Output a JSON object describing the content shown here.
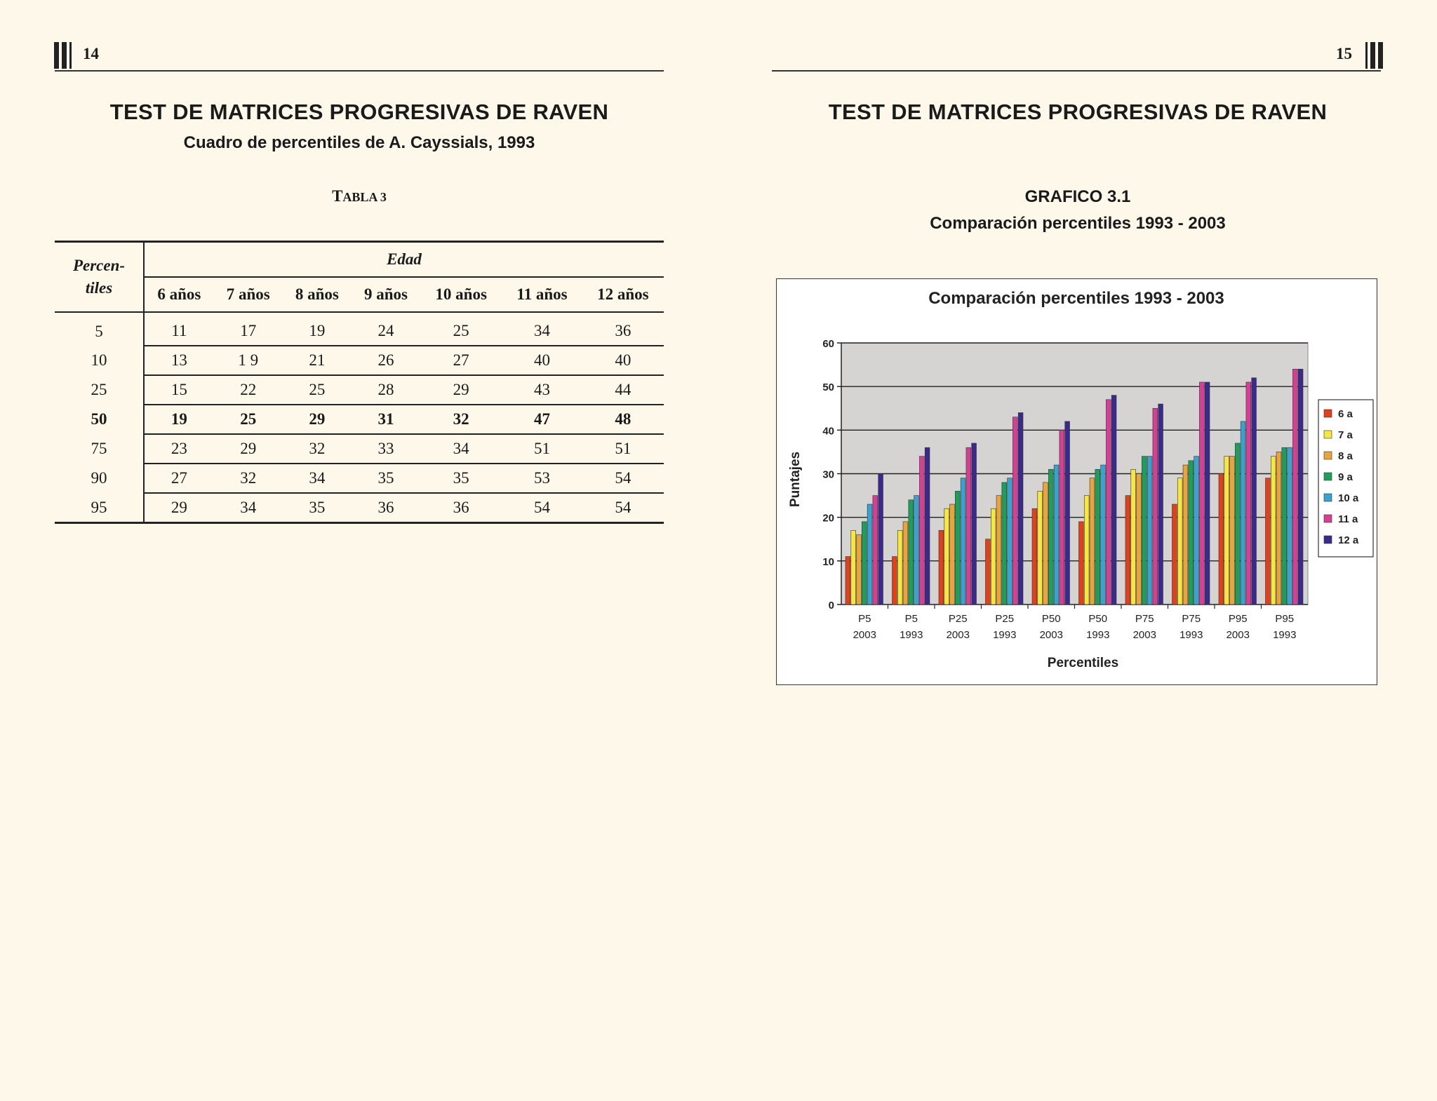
{
  "left_page": {
    "page_number": "14",
    "title": "TEST DE MATRICES PROGRESIVAS DE RAVEN",
    "subtitle": "Cuadro de percentiles de A. Cayssials, 1993",
    "table_caption_first": "T",
    "table_caption_rest": "ABLA 3",
    "table": {
      "row_header_line1": "Percen-",
      "row_header_line2": "tiles",
      "group_header": "Edad",
      "columns": [
        "6 años",
        "7 años",
        "8 años",
        "9 años",
        "10 años",
        "11 años",
        "12 años"
      ],
      "rows": [
        {
          "p": "5",
          "v": [
            "11",
            "17",
            "19",
            "24",
            "25",
            "34",
            "36"
          ]
        },
        {
          "p": "10",
          "v": [
            "13",
            "1 9",
            "21",
            "26",
            "27",
            "40",
            "40"
          ]
        },
        {
          "p": "25",
          "v": [
            "15",
            "22",
            "25",
            "28",
            "29",
            "43",
            "44"
          ]
        },
        {
          "p": "50",
          "v": [
            "19",
            "25",
            "29",
            "31",
            "32",
            "47",
            "48"
          ]
        },
        {
          "p": "75",
          "v": [
            "23",
            "29",
            "32",
            "33",
            "34",
            "51",
            "51"
          ]
        },
        {
          "p": "90",
          "v": [
            "27",
            "32",
            "34",
            "35",
            "35",
            "53",
            "54"
          ]
        },
        {
          "p": "95",
          "v": [
            "29",
            "34",
            "35",
            "36",
            "36",
            "54",
            "54"
          ]
        }
      ]
    }
  },
  "right_page": {
    "page_number": "15",
    "title": "TEST DE MATRICES PROGRESIVAS DE RAVEN",
    "figure_label": "GRAFICO 3.1",
    "figure_caption": "Comparación percentiles 1993 - 2003"
  },
  "chart_data": {
    "type": "bar",
    "title": "Comparación percentiles 1993 - 2003",
    "xlabel": "Percentiles",
    "ylabel": "Puntajes",
    "ylim": [
      0,
      60
    ],
    "yticks": [
      "0",
      "10",
      "20",
      "30",
      "40",
      "50",
      "60"
    ],
    "categories": [
      [
        "P5",
        "2003"
      ],
      [
        "P5",
        "1993"
      ],
      [
        "P25",
        "2003"
      ],
      [
        "P25",
        "1993"
      ],
      [
        "P50",
        "2003"
      ],
      [
        "P50",
        "1993"
      ],
      [
        "P75",
        "2003"
      ],
      [
        "P75",
        "1993"
      ],
      [
        "P95",
        "2003"
      ],
      [
        "P95",
        "1993"
      ]
    ],
    "legend_position": "right",
    "grid": true,
    "series": [
      {
        "name": "6 a",
        "color": "#e0401c",
        "values": [
          11,
          11,
          17,
          15,
          22,
          19,
          25,
          23,
          30,
          29
        ]
      },
      {
        "name": "7 a",
        "color": "#f6e640",
        "values": [
          17,
          17,
          22,
          22,
          26,
          25,
          31,
          29,
          34,
          34
        ]
      },
      {
        "name": "8 a",
        "color": "#eba43a",
        "values": [
          16,
          19,
          23,
          25,
          28,
          29,
          30,
          32,
          34,
          35
        ]
      },
      {
        "name": "9 a",
        "color": "#1f9e5a",
        "values": [
          19,
          24,
          26,
          28,
          31,
          31,
          34,
          33,
          37,
          36
        ]
      },
      {
        "name": "10 a",
        "color": "#3aa2cf",
        "values": [
          23,
          25,
          29,
          29,
          32,
          32,
          34,
          34,
          42,
          36
        ]
      },
      {
        "name": "11 a",
        "color": "#d63f93",
        "values": [
          25,
          34,
          36,
          43,
          40,
          47,
          45,
          51,
          51,
          54
        ]
      },
      {
        "name": "12 a",
        "color": "#3a2a8c",
        "values": [
          30,
          36,
          37,
          44,
          42,
          48,
          46,
          51,
          52,
          54
        ]
      }
    ]
  }
}
